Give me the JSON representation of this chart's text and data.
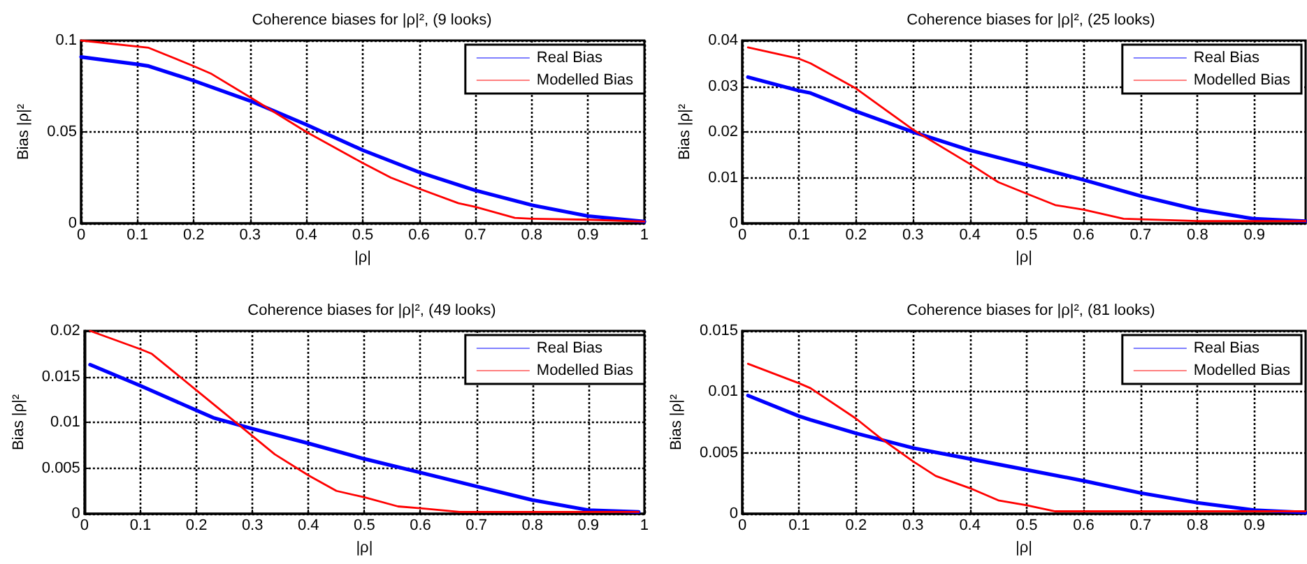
{
  "chart_data": [
    {
      "type": "line",
      "title": "Coherence biases for |ρ|², (9 looks)",
      "xlabel": "|ρ|",
      "ylabel": "Bias |ρ|²",
      "xlim": [
        0,
        1
      ],
      "xticks": [
        0,
        0.1,
        0.2,
        0.3,
        0.4,
        0.5,
        0.6,
        0.7,
        0.8,
        0.9,
        1
      ],
      "ylim": [
        0,
        0.1
      ],
      "yticks": [
        0,
        0.05,
        0.1
      ],
      "grid": true,
      "legend": "top right",
      "line_style": "solid",
      "marker": "none",
      "series": [
        {
          "name": "Real Bias",
          "color": "#0000ff",
          "x": [
            0,
            0.1,
            0.12,
            0.2,
            0.3,
            0.4,
            0.5,
            0.6,
            0.7,
            0.8,
            0.9,
            1
          ],
          "values": [
            0.091,
            0.087,
            0.086,
            0.078,
            0.067,
            0.054,
            0.04,
            0.028,
            0.018,
            0.01,
            0.004,
            0.001
          ]
        },
        {
          "name": "Modelled Bias",
          "color": "#ff0000",
          "x": [
            0,
            0.12,
            0.2,
            0.23,
            0.3,
            0.4,
            0.5,
            0.55,
            0.6,
            0.67,
            0.7,
            0.77,
            0.8,
            0.9,
            1
          ],
          "values": [
            0.1,
            0.096,
            0.086,
            0.082,
            0.069,
            0.05,
            0.033,
            0.025,
            0.019,
            0.011,
            0.009,
            0.003,
            0.0025,
            0.002,
            0.001
          ]
        }
      ]
    },
    {
      "type": "line",
      "title": "Coherence biases for |ρ|², (25 looks)",
      "xlabel": "|ρ|",
      "ylabel": "Bias |ρ|²",
      "xlim": [
        0,
        0.99
      ],
      "xticks": [
        0,
        0.1,
        0.2,
        0.3,
        0.4,
        0.5,
        0.6,
        0.7,
        0.8,
        0.9
      ],
      "ylim": [
        0,
        0.04
      ],
      "yticks": [
        0,
        0.01,
        0.02,
        0.03,
        0.04
      ],
      "grid": true,
      "legend": "top right",
      "line_style": "solid",
      "marker": "none",
      "series": [
        {
          "name": "Real Bias",
          "color": "#0000ff",
          "x": [
            0.01,
            0.1,
            0.12,
            0.2,
            0.3,
            0.4,
            0.5,
            0.6,
            0.7,
            0.8,
            0.9,
            0.99
          ],
          "values": [
            0.032,
            0.029,
            0.0285,
            0.0245,
            0.02,
            0.016,
            0.0128,
            0.0095,
            0.006,
            0.003,
            0.001,
            0.0005
          ]
        },
        {
          "name": "Modelled Bias",
          "color": "#ff0000",
          "x": [
            0.01,
            0.1,
            0.12,
            0.2,
            0.3,
            0.4,
            0.45,
            0.5,
            0.55,
            0.6,
            0.67,
            0.8,
            0.99
          ],
          "values": [
            0.0385,
            0.036,
            0.035,
            0.0295,
            0.0205,
            0.013,
            0.009,
            0.0065,
            0.004,
            0.003,
            0.001,
            0.0005,
            0.0005
          ]
        }
      ]
    },
    {
      "type": "line",
      "title": "Coherence biases for |ρ|², (49 looks)",
      "xlabel": "|ρ|",
      "ylabel": "Bias |ρ|²",
      "xlim": [
        0,
        1
      ],
      "xticks": [
        0,
        0.1,
        0.2,
        0.3,
        0.4,
        0.5,
        0.6,
        0.7,
        0.8,
        0.9,
        1
      ],
      "ylim": [
        0,
        0.02
      ],
      "yticks": [
        0,
        0.005,
        0.01,
        0.015,
        0.02
      ],
      "grid": true,
      "legend": "top right",
      "line_style": "solid",
      "marker": "none",
      "series": [
        {
          "name": "Real Bias",
          "color": "#0000ff",
          "x": [
            0.01,
            0.1,
            0.2,
            0.23,
            0.3,
            0.4,
            0.5,
            0.6,
            0.7,
            0.8,
            0.9,
            0.99
          ],
          "values": [
            0.0163,
            0.014,
            0.0113,
            0.0105,
            0.0093,
            0.0077,
            0.006,
            0.0045,
            0.003,
            0.0015,
            0.0004,
            0.0002
          ]
        },
        {
          "name": "Modelled Bias",
          "color": "#ff0000",
          "x": [
            0.01,
            0.1,
            0.12,
            0.2,
            0.3,
            0.34,
            0.4,
            0.45,
            0.5,
            0.56,
            0.6,
            0.67,
            0.99
          ],
          "values": [
            0.02,
            0.018,
            0.0175,
            0.0135,
            0.0085,
            0.0065,
            0.0042,
            0.0025,
            0.0018,
            0.0008,
            0.0006,
            0.0002,
            0.0002
          ]
        }
      ]
    },
    {
      "type": "line",
      "title": "Coherence biases for |ρ|², (81 looks)",
      "xlabel": "|ρ|",
      "ylabel": "Bias |ρ|²",
      "xlim": [
        0,
        0.99
      ],
      "xticks": [
        0,
        0.1,
        0.2,
        0.3,
        0.4,
        0.5,
        0.6,
        0.7,
        0.8,
        0.9
      ],
      "ylim": [
        0,
        0.015
      ],
      "yticks": [
        0,
        0.005,
        0.01,
        0.015
      ],
      "grid": true,
      "legend": "top right",
      "line_style": "solid",
      "marker": "none",
      "series": [
        {
          "name": "Real Bias",
          "color": "#0000ff",
          "x": [
            0.01,
            0.1,
            0.12,
            0.2,
            0.3,
            0.4,
            0.5,
            0.6,
            0.7,
            0.8,
            0.9,
            0.99
          ],
          "values": [
            0.0097,
            0.008,
            0.0077,
            0.0066,
            0.0054,
            0.0045,
            0.0036,
            0.0027,
            0.0017,
            0.0009,
            0.0003,
            0.0001
          ]
        },
        {
          "name": "Modelled Bias",
          "color": "#ff0000",
          "x": [
            0.01,
            0.1,
            0.12,
            0.2,
            0.24,
            0.3,
            0.34,
            0.4,
            0.45,
            0.5,
            0.55,
            0.99
          ],
          "values": [
            0.0123,
            0.0107,
            0.0103,
            0.0078,
            0.0063,
            0.0043,
            0.0031,
            0.0021,
            0.0011,
            0.0007,
            0.0002,
            0.0002
          ]
        }
      ]
    }
  ]
}
